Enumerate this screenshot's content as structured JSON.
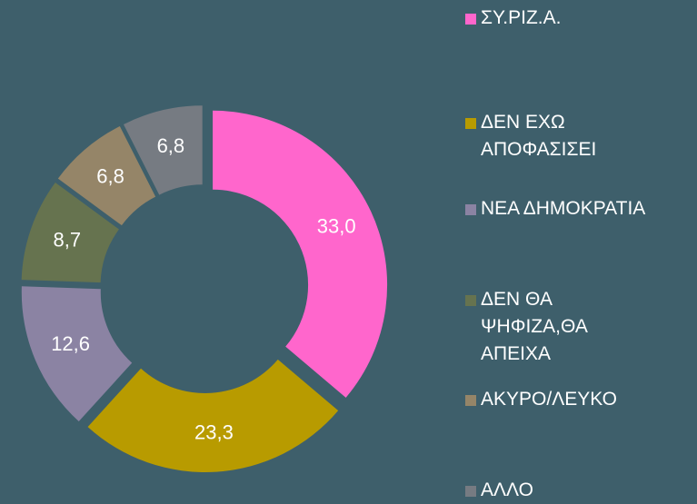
{
  "chart_data": {
    "type": "donut",
    "categories": [
      "ΣΥ.ΡΙΖ.Α.",
      "ΔΕΝ ΕΧΩ ΑΠΟΦΑΣΙΣΕΙ",
      "ΝΕΑ ΔΗΜΟΚΡΑΤΙΑ",
      "ΔΕΝ ΘΑ ΨΗΦΙΖΑ,ΘΑ ΑΠΕΙΧΑ",
      "ΑΚΥΡΟ/ΛΕΥΚΟ",
      "ΑΛΛΟ"
    ],
    "values": [
      33.0,
      23.3,
      12.6,
      8.7,
      6.8,
      6.8
    ],
    "value_labels": [
      "33,0",
      "23,3",
      "12,6",
      "8,7",
      "6,8",
      "6,8"
    ],
    "colors": [
      "#ff66cc",
      "#b89b00",
      "#8b83a3",
      "#66734f",
      "#958568",
      "#767b82"
    ],
    "legend": "right"
  }
}
